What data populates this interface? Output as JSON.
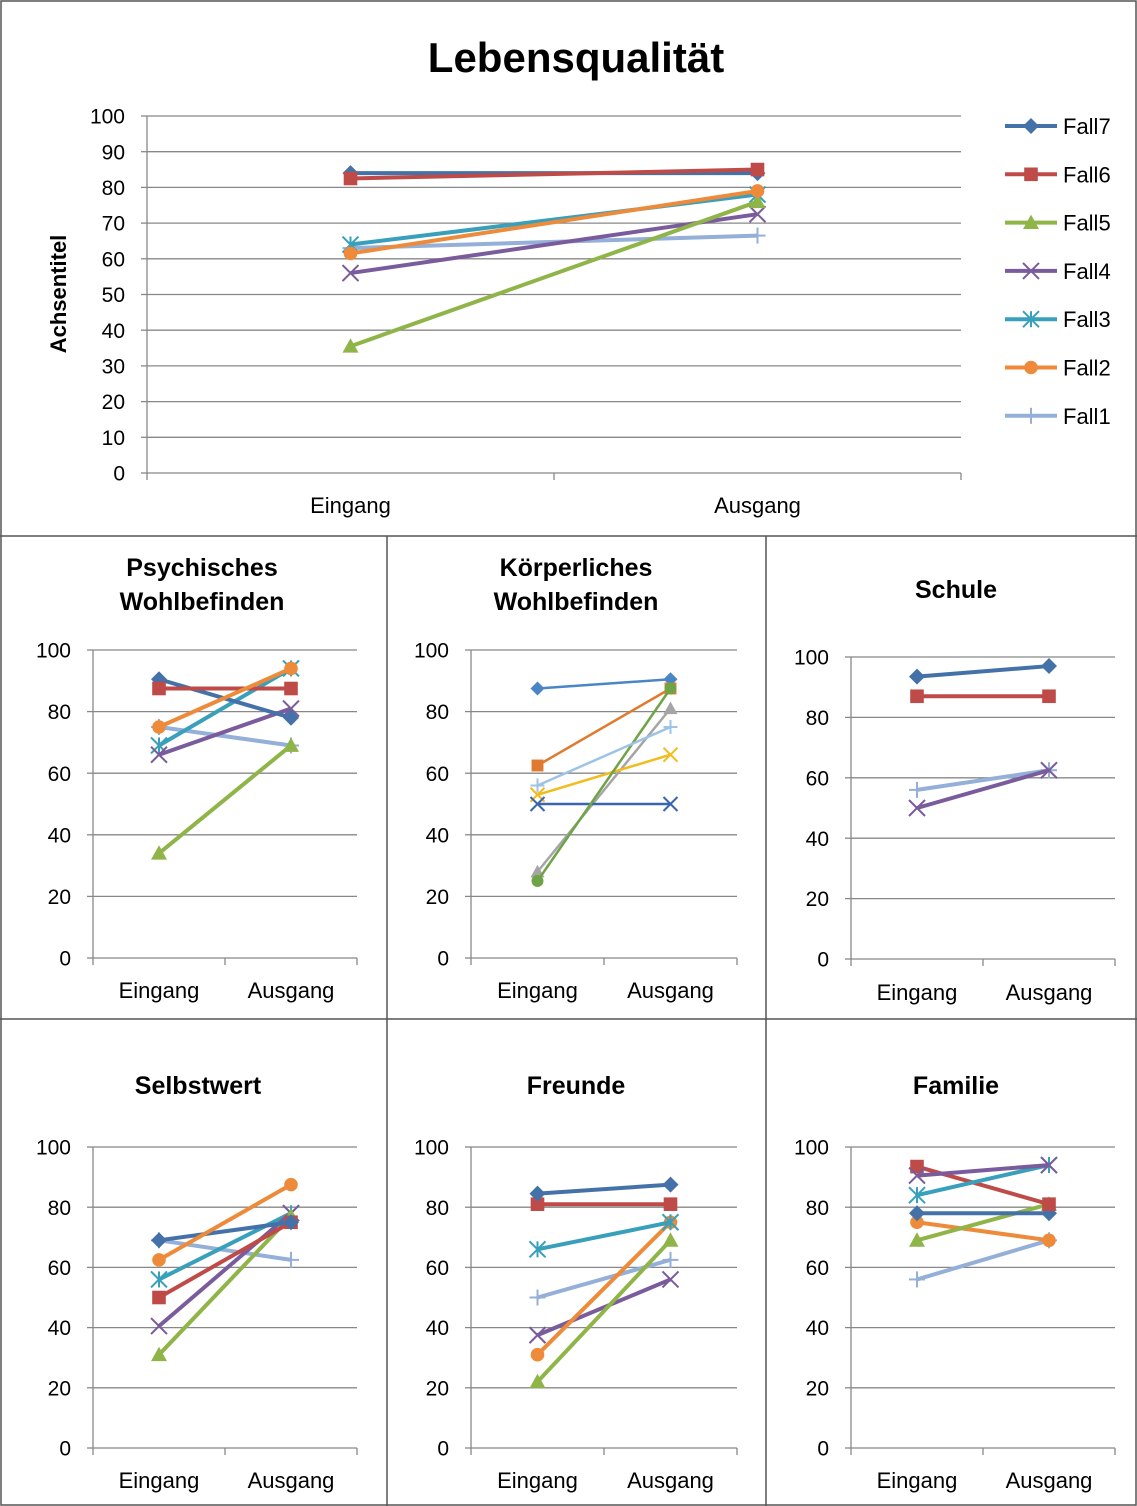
{
  "series_styles": {
    "Fall7": {
      "color": "#4472A8",
      "marker": "diamond"
    },
    "Fall6": {
      "color": "#BE4B48",
      "marker": "square"
    },
    "Fall5": {
      "color": "#8FB448",
      "marker": "triangle"
    },
    "Fall4": {
      "color": "#7A5C9C",
      "marker": "x"
    },
    "Fall3": {
      "color": "#38A0BA",
      "marker": "star"
    },
    "Fall2": {
      "color": "#ED8B3A",
      "marker": "circle"
    },
    "Fall1": {
      "color": "#94AFD8",
      "marker": "plus"
    }
  },
  "chart_data": [
    {
      "id": "main",
      "type": "line",
      "title": "Lebensqualität",
      "ylabel": "Achsentitel",
      "categories": [
        "Eingang",
        "Ausgang"
      ],
      "yticks": [
        "0",
        "10",
        "20",
        "30",
        "40",
        "50",
        "60",
        "70",
        "80",
        "90",
        "100"
      ],
      "ylim": [
        0,
        100
      ],
      "grid": true,
      "legend": {
        "position": "right",
        "entries": [
          "Fall7",
          "Fall6",
          "Fall5",
          "Fall4",
          "Fall3",
          "Fall2",
          "Fall1"
        ]
      },
      "series": [
        {
          "name": "Fall1",
          "values": [
            63,
            66.5
          ]
        },
        {
          "name": "Fall3",
          "values": [
            64,
            78
          ]
        },
        {
          "name": "Fall4",
          "values": [
            56,
            72.5
          ]
        },
        {
          "name": "Fall5",
          "values": [
            35.5,
            76
          ]
        },
        {
          "name": "Fall2",
          "values": [
            61.5,
            79
          ]
        },
        {
          "name": "Fall7",
          "values": [
            84,
            84
          ]
        },
        {
          "name": "Fall6",
          "values": [
            82.5,
            85
          ]
        }
      ]
    },
    {
      "id": "psych",
      "type": "line",
      "title": [
        "Psychisches",
        "Wohlbefinden"
      ],
      "categories": [
        "Eingang",
        "Ausgang"
      ],
      "yticks": [
        "0",
        "20",
        "40",
        "60",
        "80",
        "100"
      ],
      "ylim": [
        0,
        100
      ],
      "grid": true,
      "series": [
        {
          "name": "Fall1",
          "values": [
            75,
            69
          ]
        },
        {
          "name": "Fall3",
          "values": [
            69,
            94
          ]
        },
        {
          "name": "Fall4",
          "values": [
            66,
            81
          ]
        },
        {
          "name": "Fall5",
          "values": [
            34,
            69
          ]
        },
        {
          "name": "Fall7",
          "values": [
            90.5,
            78
          ]
        },
        {
          "name": "Fall6",
          "values": [
            87.5,
            87.5
          ]
        },
        {
          "name": "Fall2",
          "values": [
            75,
            94
          ]
        }
      ]
    },
    {
      "id": "koerper",
      "type": "line",
      "title": [
        "Körperliches",
        "Wohlbefinden"
      ],
      "categories": [
        "Eingang",
        "Ausgang"
      ],
      "yticks": [
        "0",
        "20",
        "40",
        "60",
        "80",
        "100"
      ],
      "ylim": [
        0,
        100
      ],
      "grid": true,
      "thin": true,
      "series": [
        {
          "color": "#4A86C6",
          "marker": "diamond",
          "values": [
            87.5,
            90.5
          ]
        },
        {
          "color": "#E07A2F",
          "marker": "square",
          "values": [
            62.5,
            87.5
          ]
        },
        {
          "color": "#A5A5A5",
          "marker": "triangle",
          "values": [
            28,
            81
          ]
        },
        {
          "color": "#F2BC1C",
          "marker": "x",
          "values": [
            53,
            66
          ]
        },
        {
          "color": "#3A66B0",
          "marker": "x",
          "values": [
            50,
            50
          ]
        },
        {
          "color": "#6EA346",
          "marker": "circle",
          "values": [
            25,
            87.5
          ]
        },
        {
          "color": "#9DC3E6",
          "marker": "plus",
          "values": [
            56,
            75
          ]
        }
      ]
    },
    {
      "id": "schule",
      "type": "line",
      "title": [
        "Schule"
      ],
      "categories": [
        "Eingang",
        "Ausgang"
      ],
      "yticks": [
        "0",
        "20",
        "40",
        "60",
        "80",
        "100"
      ],
      "ylim": [
        0,
        100
      ],
      "grid": true,
      "series": [
        {
          "name": "Fall1",
          "values": [
            56,
            62.5
          ]
        },
        {
          "name": "Fall4",
          "values": [
            50,
            62.5
          ]
        },
        {
          "name": "Fall7",
          "values": [
            93.5,
            97
          ]
        },
        {
          "name": "Fall6",
          "values": [
            87,
            87
          ]
        }
      ]
    },
    {
      "id": "selbst",
      "type": "line",
      "title": [
        "Selbstwert"
      ],
      "categories": [
        "Eingang",
        "Ausgang"
      ],
      "yticks": [
        "0",
        "20",
        "40",
        "60",
        "80",
        "100"
      ],
      "ylim": [
        0,
        100
      ],
      "grid": true,
      "series": [
        {
          "name": "Fall1",
          "values": [
            69,
            62.5
          ]
        },
        {
          "name": "Fall3",
          "values": [
            56,
            78
          ]
        },
        {
          "name": "Fall4",
          "values": [
            40.5,
            78
          ]
        },
        {
          "name": "Fall5",
          "values": [
            31,
            77
          ]
        },
        {
          "name": "Fall6",
          "values": [
            50,
            75
          ]
        },
        {
          "name": "Fall7",
          "values": [
            69,
            75
          ]
        },
        {
          "name": "Fall2",
          "values": [
            62.5,
            87.5
          ]
        }
      ]
    },
    {
      "id": "freunde",
      "type": "line",
      "title": [
        "Freunde"
      ],
      "categories": [
        "Eingang",
        "Ausgang"
      ],
      "yticks": [
        "0",
        "20",
        "40",
        "60",
        "80",
        "100"
      ],
      "ylim": [
        0,
        100
      ],
      "grid": true,
      "series": [
        {
          "name": "Fall1",
          "values": [
            50,
            62.5
          ]
        },
        {
          "name": "Fall4",
          "values": [
            37.5,
            56
          ]
        },
        {
          "name": "Fall5",
          "values": [
            22,
            69
          ]
        },
        {
          "name": "Fall2",
          "values": [
            31,
            75
          ]
        },
        {
          "name": "Fall3",
          "values": [
            66,
            75
          ]
        },
        {
          "name": "Fall6",
          "values": [
            81,
            81
          ]
        },
        {
          "name": "Fall7",
          "values": [
            84.5,
            87.5
          ]
        }
      ]
    },
    {
      "id": "familie",
      "type": "line",
      "title": [
        "Familie"
      ],
      "categories": [
        "Eingang",
        "Ausgang"
      ],
      "yticks": [
        "0",
        "20",
        "40",
        "60",
        "80",
        "100"
      ],
      "ylim": [
        0,
        100
      ],
      "grid": true,
      "series": [
        {
          "name": "Fall1",
          "values": [
            56,
            69
          ]
        },
        {
          "name": "Fall2",
          "values": [
            75,
            69
          ]
        },
        {
          "name": "Fall5",
          "values": [
            69,
            81
          ]
        },
        {
          "name": "Fall7",
          "values": [
            78,
            78
          ]
        },
        {
          "name": "Fall6",
          "values": [
            93.5,
            81
          ]
        },
        {
          "name": "Fall3",
          "values": [
            84,
            94
          ]
        },
        {
          "name": "Fall4",
          "values": [
            90.5,
            94
          ]
        }
      ]
    }
  ]
}
